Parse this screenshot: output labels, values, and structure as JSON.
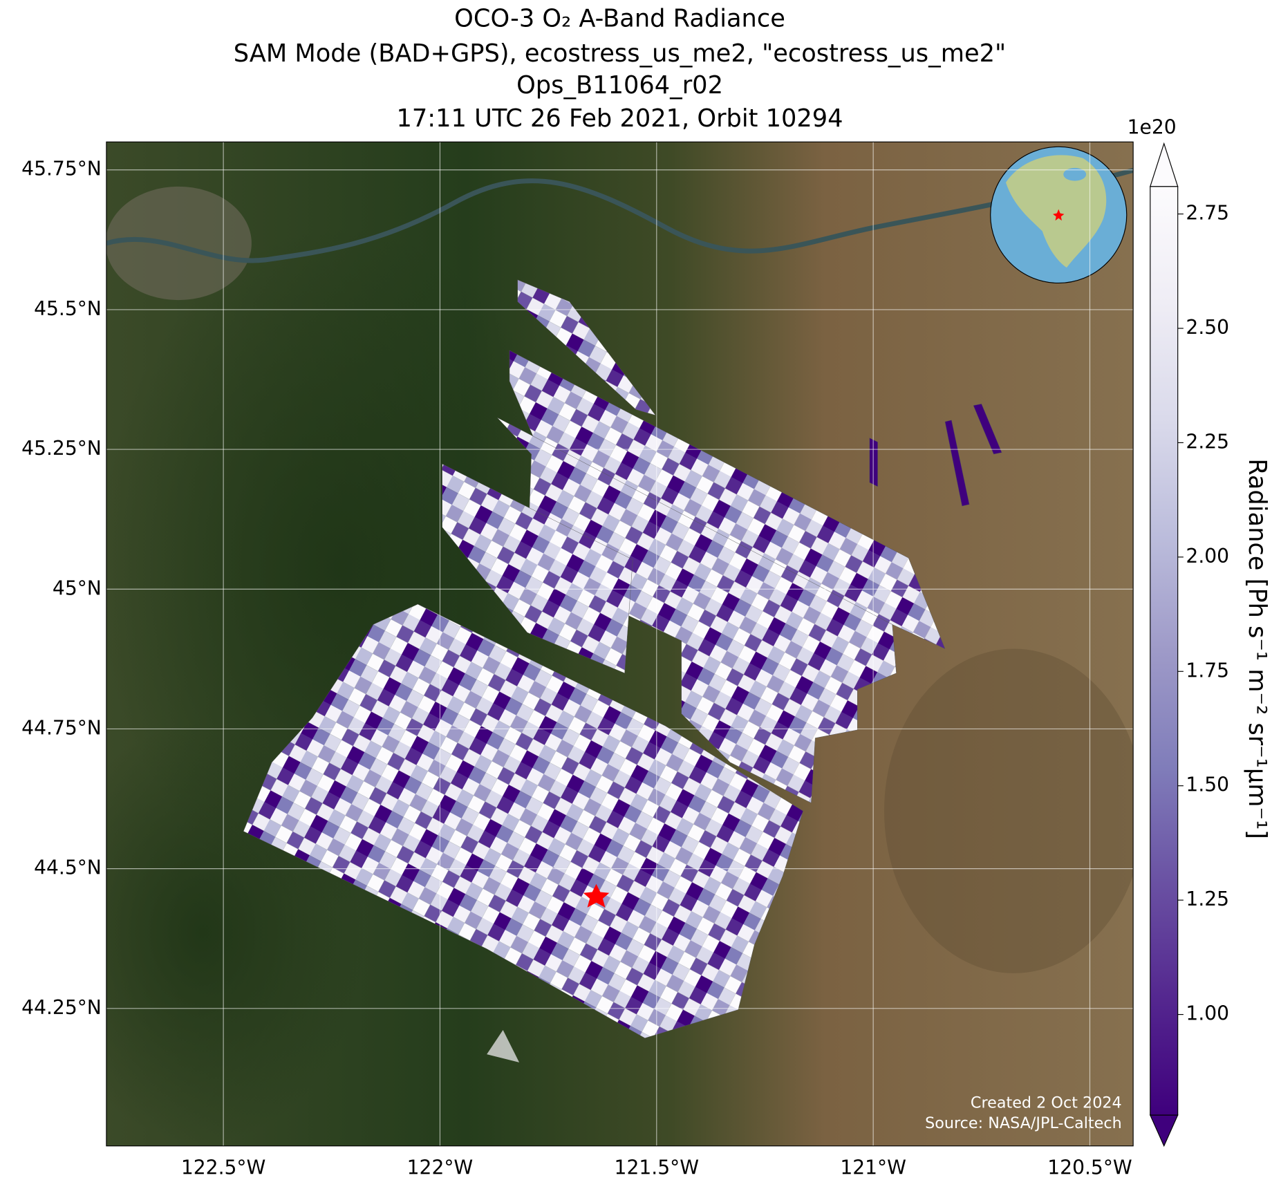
{
  "chart_data": {
    "type": "map",
    "title": [
      "OCO-3 O₂ A-Band Radiance",
      "SAM Mode (BAD+GPS), ecostress_us_me2, \"ecostress_us_me2\"",
      "Ops_B11064_r02",
      "17:11 UTC 26 Feb 2021, Orbit 10294"
    ],
    "xlim": [
      -122.77,
      -120.4
    ],
    "ylim": [
      44.004,
      45.8
    ],
    "xticks": [
      {
        "value": -122.5,
        "label": "122.5°W"
      },
      {
        "value": -122,
        "label": "122°W"
      },
      {
        "value": -121.5,
        "label": "121.5°W"
      },
      {
        "value": -121,
        "label": "121°W"
      },
      {
        "value": -120.5,
        "label": "120.5°W"
      }
    ],
    "yticks": [
      {
        "value": 45.75,
        "label": "45.75°N"
      },
      {
        "value": 45.5,
        "label": "45.5°N"
      },
      {
        "value": 45.25,
        "label": "45.25°N"
      },
      {
        "value": 45,
        "label": "45°N"
      },
      {
        "value": 44.75,
        "label": "44.75°N"
      },
      {
        "value": 44.5,
        "label": "44.5°N"
      },
      {
        "value": 44.25,
        "label": "44.25°N"
      }
    ],
    "grid": true,
    "colorbar": {
      "label": "Radiance [Ph s⁻¹ m⁻² sr⁻¹μm⁻¹]",
      "multiplier": "1e20",
      "lim": [
        0.78,
        2.81
      ],
      "ticks": [
        {
          "value": 1.0,
          "label": "1.00"
        },
        {
          "value": 1.25,
          "label": "1.25"
        },
        {
          "value": 1.5,
          "label": "1.50"
        },
        {
          "value": 1.75,
          "label": "1.75"
        },
        {
          "value": 2.0,
          "label": "2.00"
        },
        {
          "value": 2.25,
          "label": "2.25"
        },
        {
          "value": 2.5,
          "label": "2.50"
        },
        {
          "value": 2.75,
          "label": "2.75"
        }
      ],
      "colors": [
        "#3f007d",
        "#54278f",
        "#6a51a3",
        "#807dba",
        "#9e9ac8",
        "#bcbddc",
        "#dadaeb",
        "#efedf5",
        "#fcfbfd"
      ]
    },
    "annotations": [
      "Created 2 Oct 2024",
      "Source: NASA/JPL-Caltech"
    ]
  }
}
